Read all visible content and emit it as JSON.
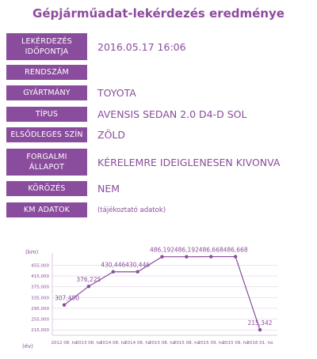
{
  "page": {
    "title": "Gépjárműadat-lekérdezés eredménye"
  },
  "fields": [
    {
      "label": "LEKÉRDEZÉS IDŐPONTJA",
      "value": "2016.05.17 16:06"
    },
    {
      "label": "RENDSZÁM",
      "value": ""
    },
    {
      "label": "GYÁRTMÁNY",
      "value": "TOYOTA"
    },
    {
      "label": "TÍPUS",
      "value": "AVENSIS SEDAN 2.0 D4-D SOL"
    },
    {
      "label": "ELSŐDLEGES SZÍN",
      "value": "ZÖLD"
    },
    {
      "label": "FORGALMI ÁLLAPOT",
      "value": "KÉRELEMRE IDEIGLENESEN KIVONVA"
    },
    {
      "label": "KÖRÖZÉS",
      "value": "NEM"
    },
    {
      "label": "KM ADATOK",
      "value": "(tájékoztató adatok)"
    }
  ],
  "colors": {
    "accent": "#8a4c9c",
    "grid": "#d9c8df",
    "text": "#8a4c9c"
  },
  "chart_data": {
    "type": "line",
    "ylabel": "(km)",
    "xlabel": "(év)",
    "yticks": [
      215000,
      255000,
      295000,
      335000,
      375000,
      415000,
      455000
    ],
    "ytick_labels": [
      "215,000",
      "255,000",
      "295,000",
      "335,000",
      "375,000",
      "415,000",
      "455,000"
    ],
    "ylim": [
      195000,
      500000
    ],
    "categories": [
      "2012 08. hó",
      "2013 08. hó",
      "2014 08. hó",
      "2014 08. hó",
      "2015 08. hó",
      "2015 08. hó",
      "2015 09. hó",
      "2015 09. hó",
      "2016 01. hó"
    ],
    "values": [
      307480,
      376225,
      430446,
      430446,
      486192,
      486192,
      486668,
      486668,
      215342
    ],
    "data_labels": [
      "307,480",
      "376,225",
      "430,446",
      "430,446",
      "486,192",
      "486,192",
      "486,668",
      "486,668",
      "215,342"
    ]
  }
}
